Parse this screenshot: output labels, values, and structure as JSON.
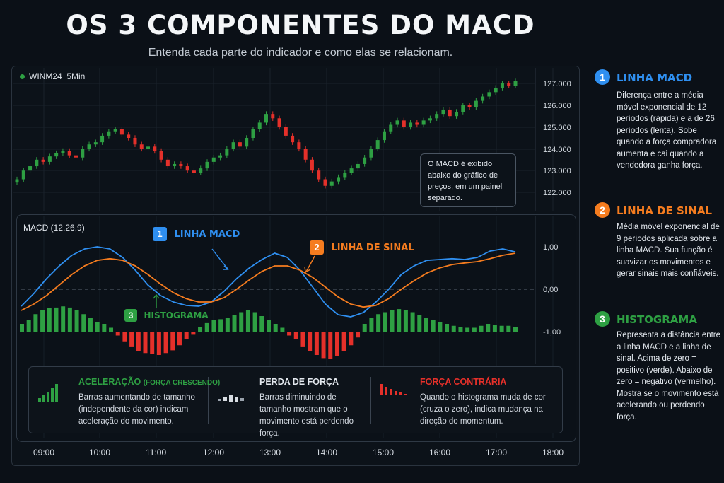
{
  "title": "OS 3 COMPONENTES DO MACD",
  "subtitle": "Entenda cada parte do indicador e como elas se relacionam.",
  "price_panel": {
    "symbol": "WINM24",
    "timeframe": "5Min",
    "callout": "O MACD é exibido abaixo do gráfico de preços, em um painel separado."
  },
  "macd_panel": {
    "label": "MACD (12,26,9)",
    "labels": {
      "macd": {
        "num": "1",
        "text": "LINHA MACD"
      },
      "signal": {
        "num": "2",
        "text": "LINHA DE SINAL"
      },
      "hist": {
        "num": "3",
        "text": "HISTOGRAMA"
      }
    }
  },
  "legend_box": [
    {
      "title": "ACELERAÇÃO",
      "title_extra": "(FORÇA CRESCENDO)",
      "text": "Barras aumentando de tamanho (independente da cor) indicam aceleração do movimento."
    },
    {
      "title": "PERDA DE FORÇA",
      "text": "Barras diminuindo de tamanho mostram que o movimento está perdendo força."
    },
    {
      "title": "FORÇA CONTRÁRIA",
      "text": "Quando o histograma muda de cor (cruza o zero), indica mudança na direção do momentum."
    }
  ],
  "sidebar": [
    {
      "num": "1",
      "title": "LINHA MACD",
      "text": "Diferença entre a média móvel exponencial de 12 períodos (rápida) e a de 26 períodos (lenta). Sobe quando a força compradora aumenta e cai quando a vendedora ganha força."
    },
    {
      "num": "2",
      "title": "LINHA DE SINAL",
      "text": "Média móvel exponencial de 9 períodos aplicada sobre a linha MACD. Sua função é suavizar os movimentos e gerar sinais mais confiáveis."
    },
    {
      "num": "3",
      "title": "HISTOGRAMA",
      "text": "Representa a distância entre a linha MACD e a linha de sinal. Acima de zero = positivo (verde). Abaixo de zero = negativo (vermelho). Mostra se o movimento está acelerando ou perdendo força."
    }
  ],
  "colors": {
    "up": "#2ea043",
    "down": "#e5302a",
    "macd": "#2f8ff0",
    "signal": "#f57c1f",
    "hist_pos": "#2ea043",
    "hist_neg": "#e5302a"
  },
  "chart_data": [
    {
      "type": "candlestick",
      "title": "WINM24 5Min",
      "y_ticks": [
        "127.000",
        "126.000",
        "125.000",
        "124.000",
        "123.000",
        "122.000"
      ],
      "ylim": [
        121800,
        127300
      ],
      "close": [
        122600,
        123000,
        123200,
        123500,
        123400,
        123650,
        123800,
        123900,
        123700,
        123600,
        124000,
        124200,
        124300,
        124600,
        124800,
        124900,
        124650,
        124500,
        124200,
        124000,
        124100,
        123900,
        123500,
        123200,
        123300,
        123200,
        123000,
        122900,
        123100,
        123400,
        123600,
        123700,
        124000,
        124300,
        124100,
        124500,
        124900,
        125200,
        125600,
        125400,
        125000,
        124600,
        124300,
        124000,
        123500,
        123000,
        122600,
        122300,
        122500,
        122700,
        122900,
        123100,
        123300,
        123600,
        124000,
        124400,
        124800,
        125100,
        125300,
        125000,
        125200,
        125100,
        125300,
        125400,
        125600,
        125800,
        125500,
        125700,
        126000,
        125900,
        126200,
        126400,
        126600,
        126800,
        127000,
        126900,
        127100
      ],
      "x_ticks": [
        "09:00",
        "10:00",
        "11:00",
        "12:00",
        "13:00",
        "14:00",
        "15:00",
        "16:00",
        "17:00",
        "18:00"
      ]
    },
    {
      "type": "line+bar",
      "title": "MACD (12,26,9)",
      "y_ticks": [
        "1,00",
        "0,00",
        "-1,00"
      ],
      "ylim": [
        -1.1,
        1.1
      ],
      "series": [
        {
          "name": "LINHA MACD",
          "values": [
            -0.4,
            -0.1,
            0.25,
            0.55,
            0.8,
            0.95,
            1.0,
            0.95,
            0.75,
            0.45,
            0.1,
            -0.15,
            -0.3,
            -0.38,
            -0.4,
            -0.3,
            -0.05,
            0.25,
            0.5,
            0.7,
            0.85,
            0.75,
            0.45,
            0.05,
            -0.35,
            -0.6,
            -0.65,
            -0.55,
            -0.3,
            0.0,
            0.35,
            0.55,
            0.68,
            0.7,
            0.72,
            0.7,
            0.75,
            0.9,
            0.95,
            0.88
          ]
        },
        {
          "name": "LINHA DE SINAL",
          "values": [
            -0.5,
            -0.35,
            -0.15,
            0.1,
            0.35,
            0.55,
            0.68,
            0.72,
            0.68,
            0.55,
            0.35,
            0.12,
            -0.08,
            -0.22,
            -0.3,
            -0.3,
            -0.2,
            0.0,
            0.22,
            0.42,
            0.55,
            0.55,
            0.45,
            0.28,
            0.05,
            -0.18,
            -0.35,
            -0.42,
            -0.38,
            -0.22,
            0.0,
            0.2,
            0.38,
            0.5,
            0.58,
            0.62,
            0.65,
            0.72,
            0.8,
            0.85
          ]
        }
      ],
      "histogram": [
        0.2,
        0.3,
        0.45,
        0.55,
        0.6,
        0.62,
        0.65,
        0.62,
        0.55,
        0.45,
        0.35,
        0.25,
        0.2,
        0.1,
        -0.1,
        -0.25,
        -0.38,
        -0.5,
        -0.55,
        -0.58,
        -0.6,
        -0.55,
        -0.48,
        -0.35,
        -0.2,
        -0.08,
        0.12,
        0.22,
        0.3,
        0.32,
        0.35,
        0.42,
        0.5,
        0.55,
        0.5,
        0.4,
        0.3,
        0.2,
        0.1,
        -0.1,
        -0.2,
        -0.38,
        -0.5,
        -0.6,
        -0.68,
        -0.7,
        -0.62,
        -0.5,
        -0.35,
        -0.15,
        0.2,
        0.35,
        0.45,
        0.5,
        0.55,
        0.58,
        0.55,
        0.5,
        0.42,
        0.35,
        0.3,
        0.25,
        0.2,
        0.15,
        0.12,
        0.1,
        0.1,
        0.15,
        0.2,
        0.18,
        0.15,
        0.15,
        0.12
      ],
      "x_ticks": [
        "09:00",
        "10:00",
        "11:00",
        "12:00",
        "13:00",
        "14:00",
        "15:00",
        "16:00",
        "17:00",
        "18:00"
      ]
    }
  ]
}
